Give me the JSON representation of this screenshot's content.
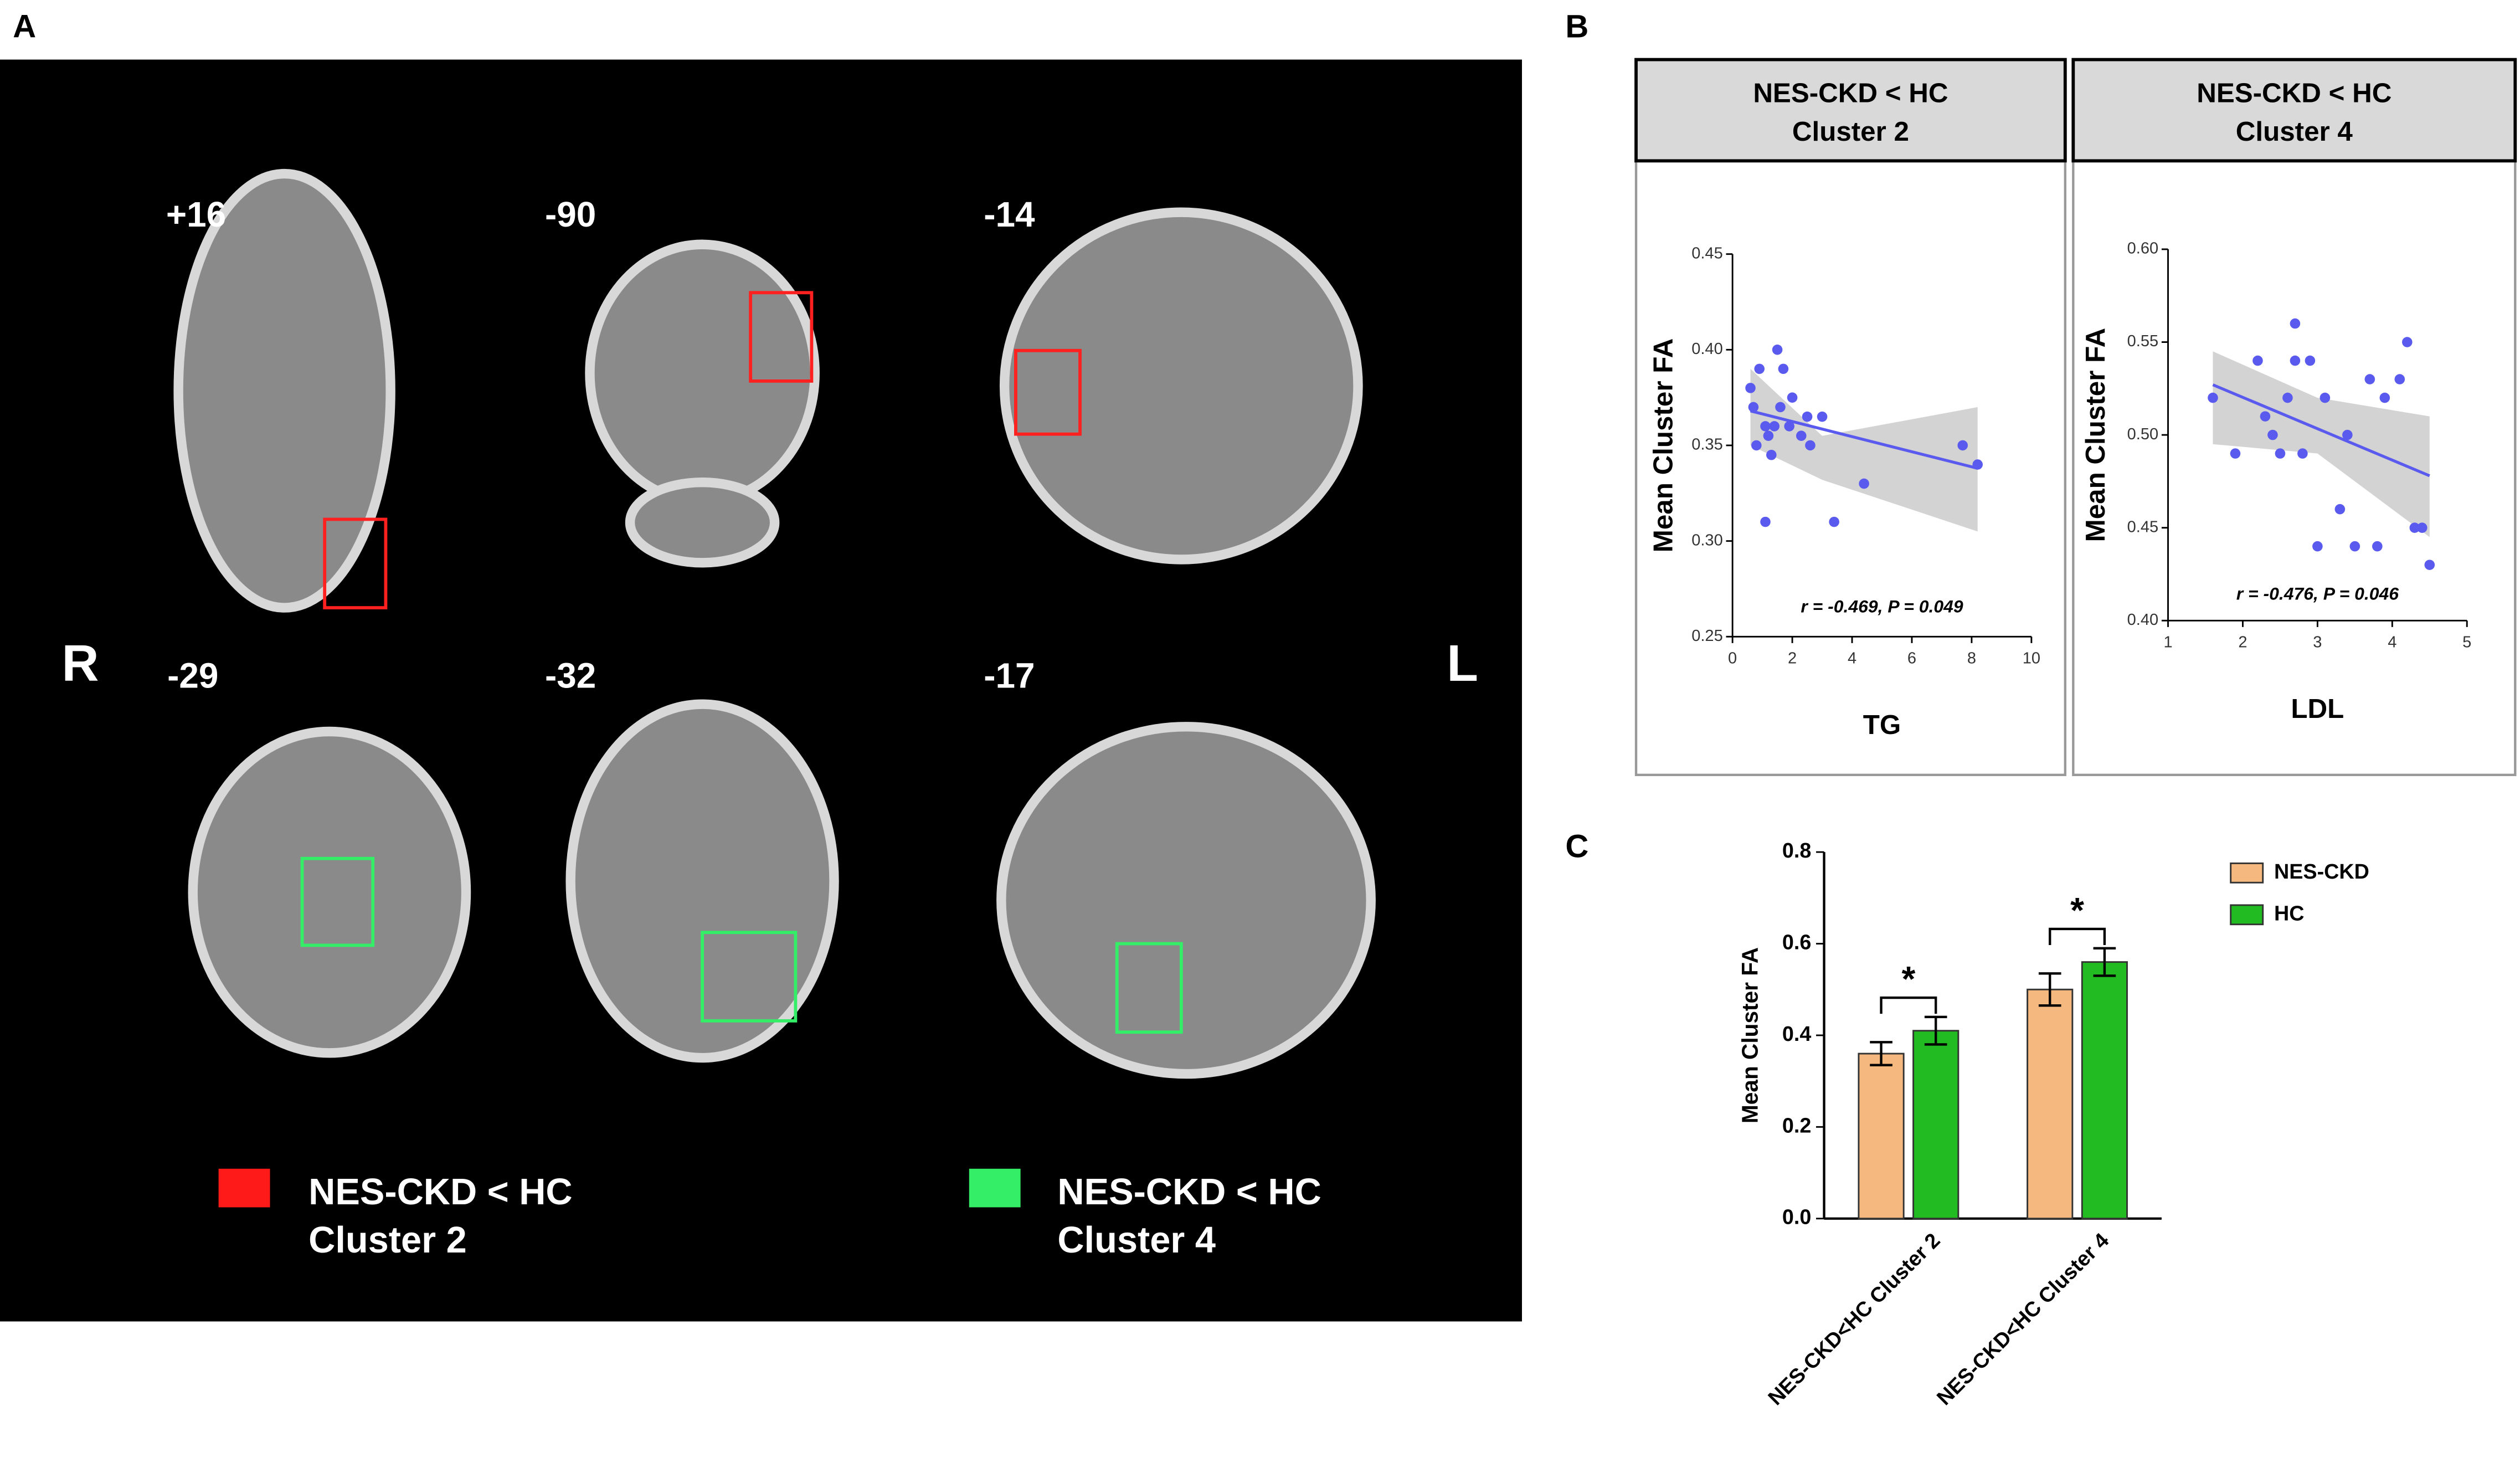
{
  "panel_labels": [
    "A",
    "B",
    "C"
  ],
  "brain": {
    "slice_labels": [
      "+16",
      "-90",
      "-14",
      "-29",
      "-32",
      "-17"
    ],
    "side_labels": [
      "R",
      "L"
    ],
    "legend": [
      {
        "lines": [
          "NES-CKD < HC",
          "Cluster 2"
        ],
        "color": "#ff1a1a"
      },
      {
        "lines": [
          "NES-CKD < HC",
          "Cluster 4"
        ],
        "color": "#33ee66"
      }
    ]
  },
  "chart_data": [
    {
      "type": "scatter",
      "header": [
        "NES-CKD < HC",
        "Cluster 2"
      ],
      "x_label": "TG",
      "y_label": "Mean Cluster FA",
      "annotation": "r = -0.469, P = 0.049",
      "color": "#5a5aee",
      "x": [
        0.6,
        0.7,
        0.9,
        1.1,
        1.2,
        1.3,
        1.5,
        1.6,
        1.7,
        1.9,
        1.1,
        2.0,
        2.3,
        2.5,
        2.6,
        3.0,
        3.4,
        4.4,
        7.7,
        8.2,
        0.8,
        1.4
      ],
      "values": [
        0.38,
        0.37,
        0.39,
        0.36,
        0.355,
        0.345,
        0.4,
        0.37,
        0.39,
        0.36,
        0.31,
        0.375,
        0.355,
        0.365,
        0.35,
        0.365,
        0.31,
        0.33,
        0.35,
        0.34,
        0.35,
        0.36
      ],
      "trend_line": {
        "x": [
          0.6,
          8.2
        ],
        "y": [
          0.368,
          0.338
        ]
      },
      "ci_band": {
        "x": [
          0.6,
          3,
          8.2
        ],
        "upper": [
          0.39,
          0.355,
          0.37
        ],
        "lower": [
          0.35,
          0.332,
          0.305
        ]
      },
      "xlim": [
        0,
        10
      ],
      "xticks": [
        0,
        2,
        4,
        6,
        8,
        10
      ],
      "ylim": [
        0.25,
        0.45
      ],
      "yticks": [
        {
          "value": 0.25,
          "label": "0.25"
        },
        {
          "value": 0.3,
          "label": "0.30"
        },
        {
          "value": 0.35,
          "label": "0.35"
        },
        {
          "value": 0.4,
          "label": "0.40"
        },
        {
          "value": 0.45,
          "label": "0.45"
        }
      ]
    },
    {
      "type": "scatter",
      "header": [
        "NES-CKD < HC",
        "Cluster 4"
      ],
      "x_label": "LDL",
      "y_label": "Mean Cluster FA",
      "annotation": "r = -0.476, P = 0.046",
      "color": "#5a5aee",
      "x": [
        1.6,
        1.9,
        2.2,
        2.3,
        2.4,
        2.5,
        2.6,
        2.7,
        2.7,
        2.8,
        2.9,
        3.0,
        3.1,
        3.3,
        3.4,
        3.5,
        3.7,
        3.8,
        3.9,
        4.1,
        4.2,
        4.3,
        4.4,
        4.5
      ],
      "values": [
        0.52,
        0.49,
        0.54,
        0.51,
        0.5,
        0.49,
        0.52,
        0.56,
        0.54,
        0.49,
        0.54,
        0.44,
        0.52,
        0.46,
        0.5,
        0.44,
        0.53,
        0.44,
        0.52,
        0.53,
        0.55,
        0.45,
        0.45,
        0.43
      ],
      "trend_line": {
        "x": [
          1.6,
          4.5
        ],
        "y": [
          0.527,
          0.478
        ]
      },
      "ci_band": {
        "x": [
          1.6,
          3,
          4.5
        ],
        "upper": [
          0.545,
          0.52,
          0.51
        ],
        "lower": [
          0.495,
          0.49,
          0.445
        ]
      },
      "xlim": [
        1,
        5
      ],
      "xticks": [
        1,
        2,
        3,
        4,
        5
      ],
      "ylim": [
        0.4,
        0.6
      ],
      "yticks": [
        {
          "value": 0.4,
          "label": "0.40"
        },
        {
          "value": 0.45,
          "label": "0.45"
        },
        {
          "value": 0.5,
          "label": "0.50"
        },
        {
          "value": 0.55,
          "label": "0.55"
        },
        {
          "value": 0.6,
          "label": "0.60"
        }
      ]
    },
    {
      "type": "bar",
      "y_label": "Mean Cluster FA",
      "categories": [
        "NES-CKD<HC Cluster 2",
        "NES-CKD<HC Cluster 4"
      ],
      "series": [
        {
          "name": "NES-CKD",
          "color": "#f5b97f",
          "values": [
            0.36,
            0.5
          ],
          "errors": [
            0.025,
            0.035
          ]
        },
        {
          "name": "HC",
          "color": "#22bb22",
          "values": [
            0.41,
            0.56
          ],
          "errors": [
            0.03,
            0.03
          ]
        }
      ],
      "significance": [
        "*",
        "*"
      ],
      "ylim": [
        0,
        0.8
      ],
      "yticks": [
        {
          "value": 0,
          "label": "0.0"
        },
        0.2,
        0.4,
        0.6,
        0.8
      ]
    }
  ]
}
